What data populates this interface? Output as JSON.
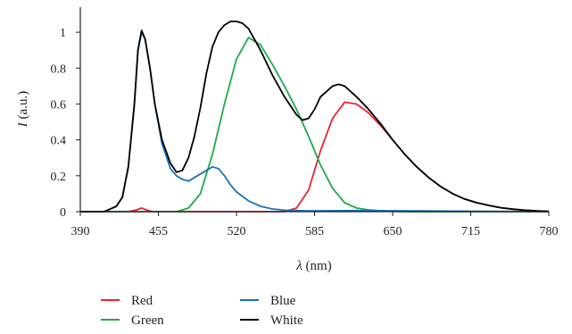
{
  "chart_data": {
    "type": "line",
    "title": "",
    "xlabel": {
      "symbol": "λ",
      "unit": " (nm)"
    },
    "ylabel": {
      "symbol": "I",
      "unit": " (a.u.)"
    },
    "xlim": [
      390,
      780
    ],
    "ylim": [
      0,
      1.1
    ],
    "x_ticks": [
      390,
      455,
      520,
      585,
      650,
      715,
      780
    ],
    "x_tick_labels": [
      "390",
      "455",
      "520",
      "585",
      "650",
      "715",
      "780"
    ],
    "y_ticks": [
      0,
      0.2,
      0.4,
      0.6,
      0.8,
      1
    ],
    "y_tick_labels": [
      "0",
      "0.2",
      "0.4",
      "0.6",
      "0.8",
      "1"
    ],
    "grid": false,
    "legend_position": "bottom",
    "series": [
      {
        "name": "Red",
        "color": "#e8262d",
        "x": [
          390,
          430,
          437,
          441,
          445,
          450,
          470,
          560,
          570,
          580,
          590,
          600,
          610,
          620,
          630,
          640,
          650,
          660,
          670,
          680,
          690,
          700,
          710,
          720,
          730,
          740,
          750,
          760,
          770,
          780
        ],
        "y": [
          0,
          0,
          0.01,
          0.02,
          0.01,
          0,
          0,
          0,
          0.02,
          0.12,
          0.34,
          0.52,
          0.61,
          0.6,
          0.55,
          0.48,
          0.4,
          0.32,
          0.25,
          0.19,
          0.14,
          0.1,
          0.07,
          0.05,
          0.035,
          0.022,
          0.014,
          0.008,
          0.004,
          0.002
        ]
      },
      {
        "name": "Green",
        "color": "#1faa4a",
        "x": [
          390,
          470,
          480,
          490,
          500,
          510,
          520,
          530,
          540,
          550,
          560,
          570,
          580,
          590,
          600,
          610,
          620,
          630,
          640,
          660,
          780
        ],
        "y": [
          0,
          0,
          0.02,
          0.1,
          0.32,
          0.6,
          0.85,
          0.97,
          0.93,
          0.82,
          0.7,
          0.57,
          0.42,
          0.26,
          0.13,
          0.05,
          0.02,
          0.01,
          0.005,
          0,
          0
        ]
      },
      {
        "name": "Blue",
        "color": "#1a72b8",
        "x": [
          390,
          410,
          420,
          425,
          430,
          435,
          438,
          441,
          444,
          448,
          452,
          458,
          465,
          470,
          475,
          480,
          485,
          490,
          495,
          500,
          505,
          510,
          515,
          520,
          530,
          540,
          550,
          560,
          580,
          620,
          700,
          780
        ],
        "y": [
          0,
          0,
          0.03,
          0.08,
          0.25,
          0.6,
          0.9,
          1.0,
          0.96,
          0.8,
          0.6,
          0.38,
          0.24,
          0.2,
          0.18,
          0.17,
          0.19,
          0.21,
          0.23,
          0.25,
          0.24,
          0.2,
          0.15,
          0.11,
          0.06,
          0.03,
          0.015,
          0.008,
          0.004,
          0.006,
          0.003,
          0
        ]
      },
      {
        "name": "White",
        "color": "#000000",
        "x": [
          390,
          410,
          420,
          425,
          430,
          435,
          438,
          441,
          444,
          448,
          452,
          458,
          465,
          470,
          475,
          480,
          485,
          490,
          495,
          500,
          505,
          510,
          515,
          520,
          525,
          530,
          540,
          550,
          560,
          570,
          575,
          580,
          585,
          590,
          600,
          605,
          610,
          620,
          630,
          640,
          650,
          660,
          670,
          680,
          690,
          700,
          710,
          720,
          730,
          740,
          750,
          760,
          770,
          780
        ],
        "y": [
          0,
          0,
          0.03,
          0.08,
          0.25,
          0.6,
          0.9,
          1.01,
          0.96,
          0.8,
          0.6,
          0.4,
          0.27,
          0.22,
          0.23,
          0.3,
          0.42,
          0.58,
          0.77,
          0.92,
          1.0,
          1.04,
          1.06,
          1.06,
          1.05,
          1.02,
          0.9,
          0.76,
          0.64,
          0.54,
          0.51,
          0.52,
          0.57,
          0.64,
          0.7,
          0.71,
          0.7,
          0.64,
          0.57,
          0.49,
          0.4,
          0.32,
          0.25,
          0.19,
          0.14,
          0.1,
          0.07,
          0.05,
          0.035,
          0.022,
          0.014,
          0.008,
          0.004,
          0.002
        ]
      }
    ]
  }
}
